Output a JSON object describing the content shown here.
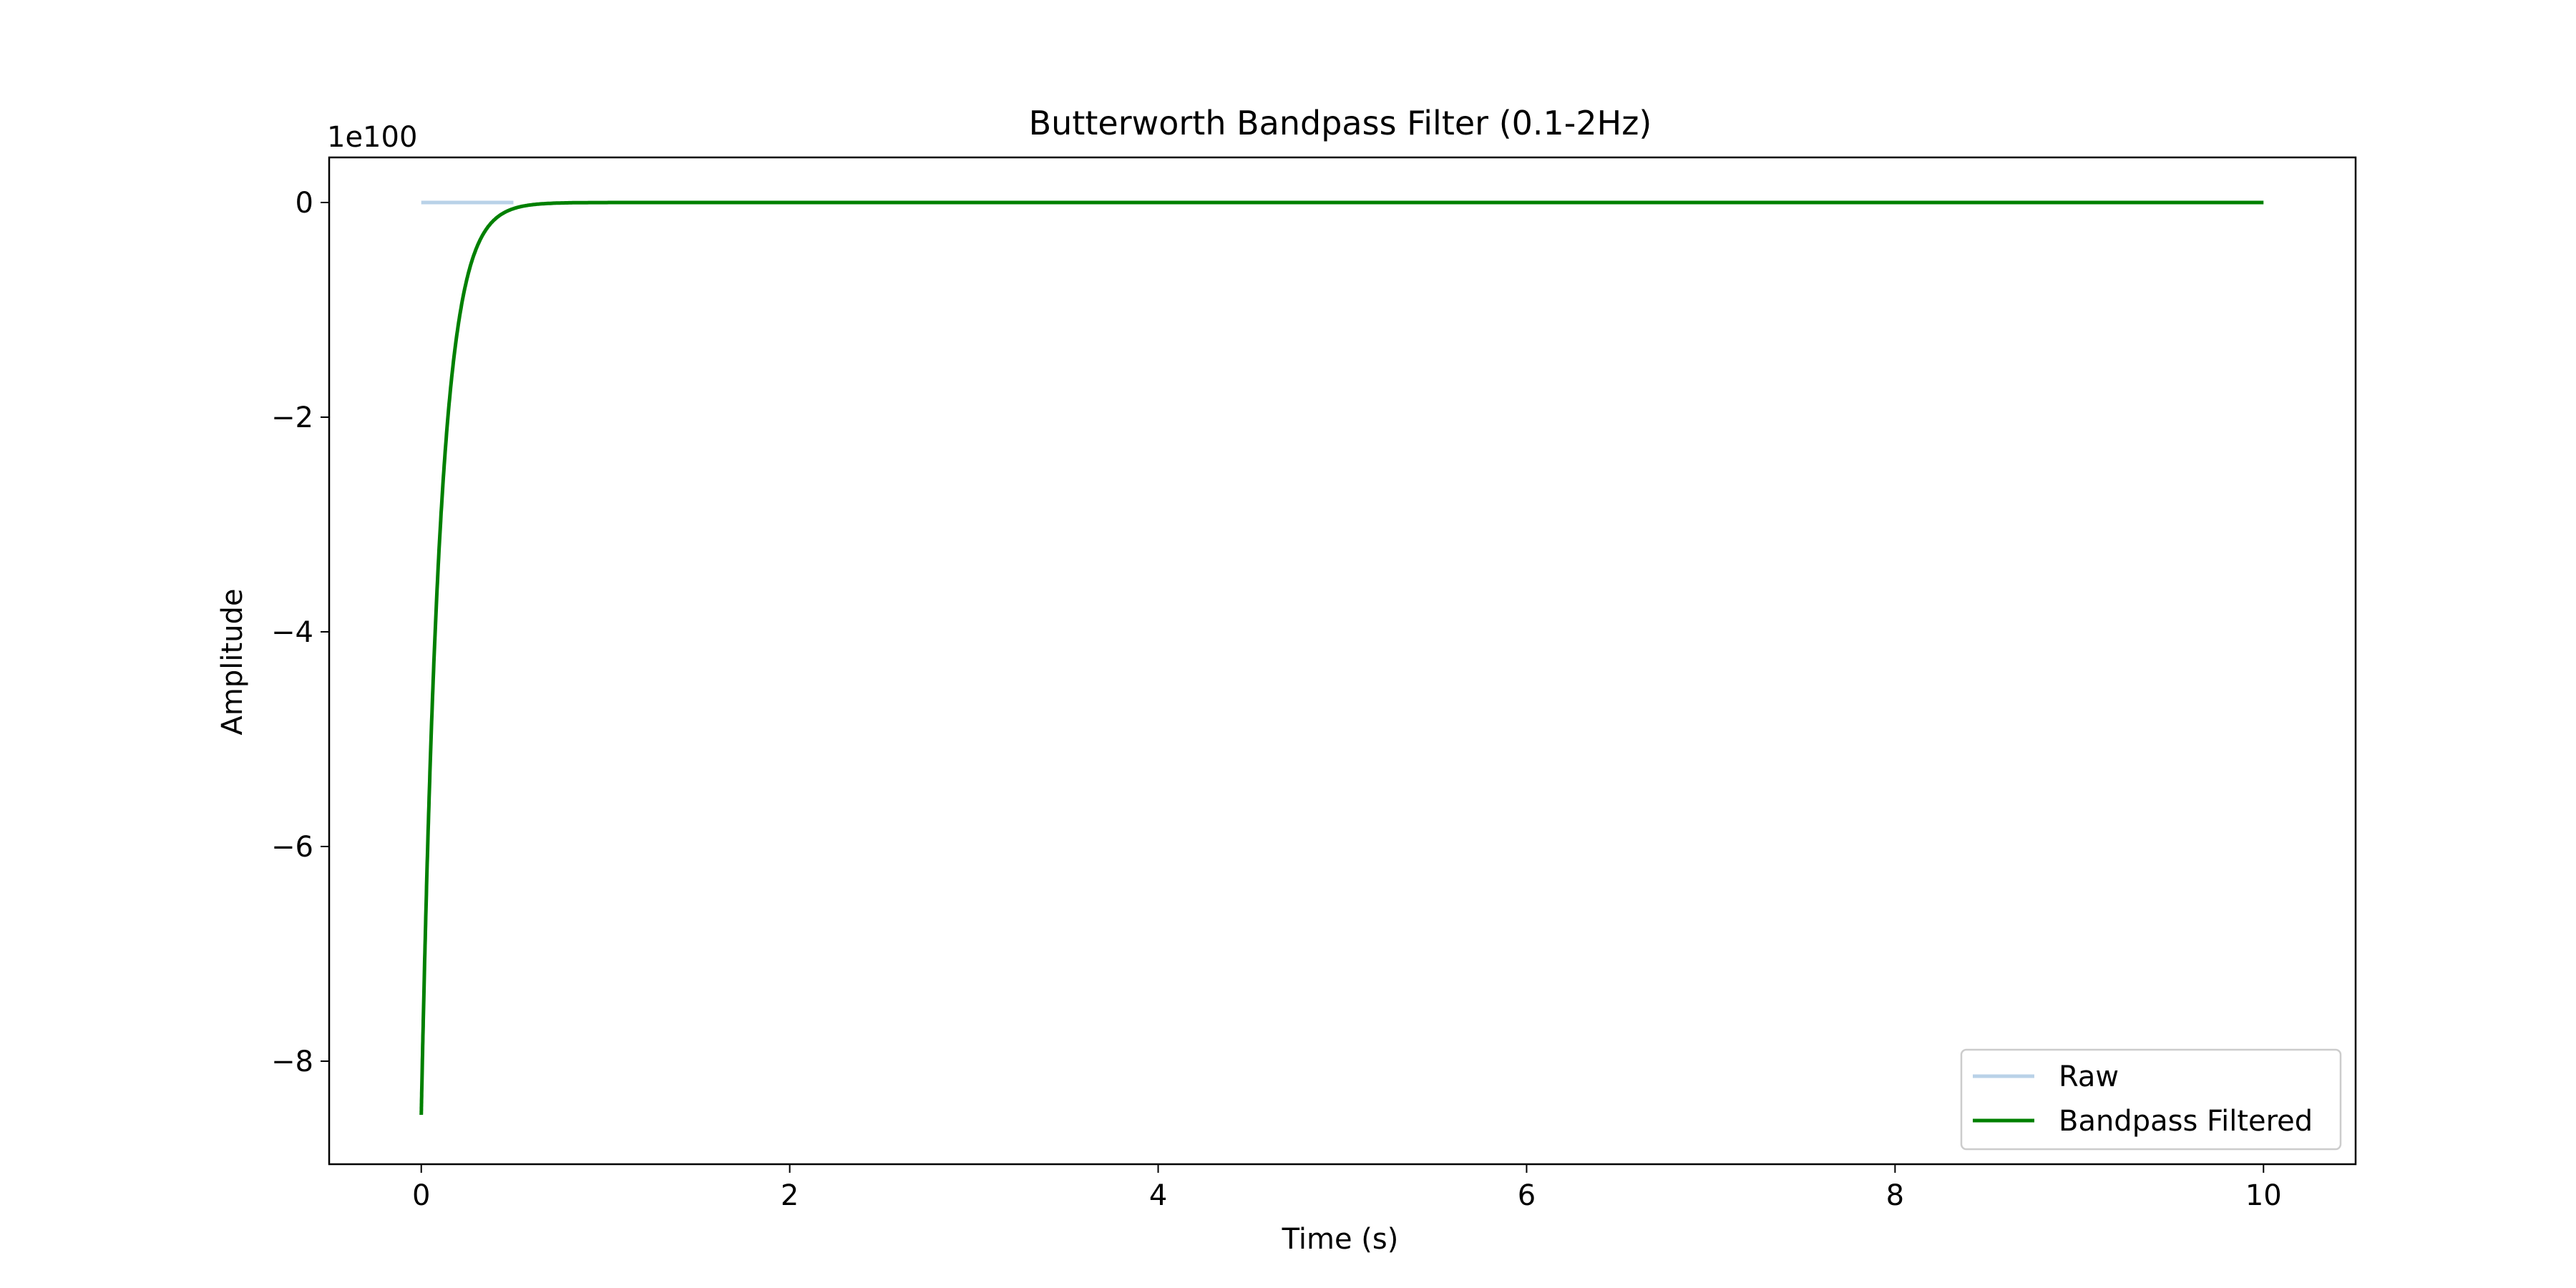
{
  "chart_data": {
    "type": "line",
    "title": "Butterworth Bandpass Filter (0.1-2Hz)",
    "xlabel": "Time (s)",
    "ylabel": "Amplitude",
    "y_offset_label": "1e100",
    "y_scale_factor": 1e+100,
    "xlim": [
      -0.5,
      10.5
    ],
    "ylim": [
      -8.96,
      0.42
    ],
    "x_ticks": [
      0,
      2,
      4,
      6,
      8,
      10
    ],
    "x_tick_labels": [
      "0",
      "2",
      "4",
      "6",
      "8",
      "10"
    ],
    "y_ticks": [
      0,
      -2,
      -4,
      -6,
      -8
    ],
    "y_tick_labels": [
      "0",
      "−2",
      "−4",
      "−6",
      "−8"
    ],
    "grid": false,
    "legend_position": "lower-right",
    "series": [
      {
        "name": "Raw",
        "color": "#b9d2e8",
        "x": [
          0,
          0.5
        ],
        "y": [
          0,
          0
        ]
      },
      {
        "name": "Bandpass Filtered",
        "color": "#008000",
        "x": [
          0,
          10
        ],
        "y": [
          -8.5,
          0
        ]
      }
    ]
  }
}
